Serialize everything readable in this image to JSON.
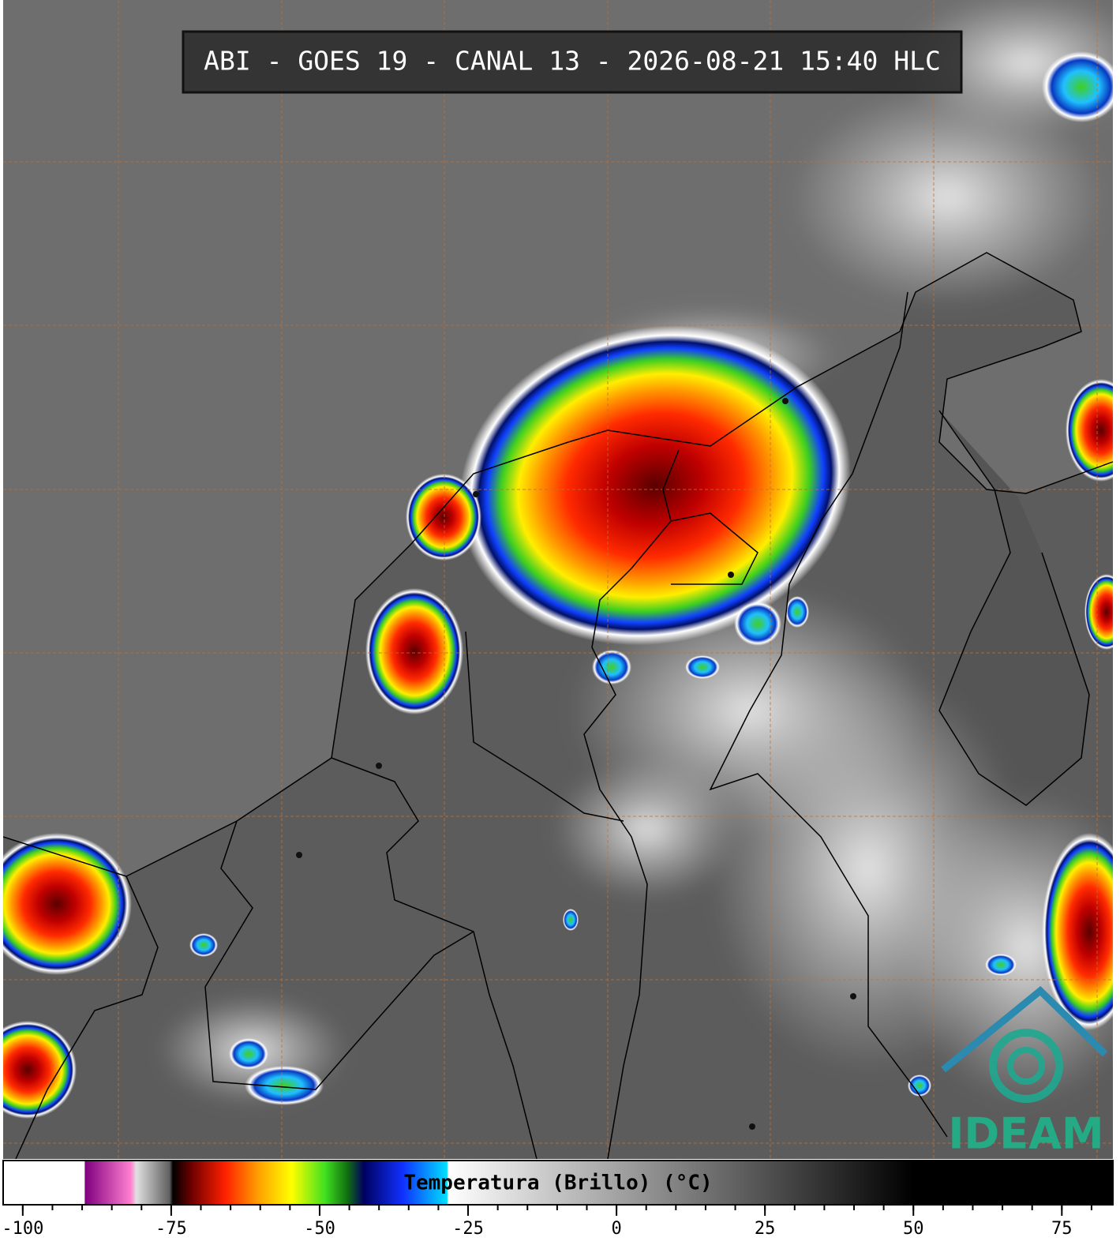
{
  "header": {
    "title": "ABI - GOES 19 - CANAL 13 - 2026-08-21 15:40 HLC"
  },
  "colorbar": {
    "label": "Temperatura (Brillo) (°C)",
    "xlim": [
      -103.3,
      83.6
    ],
    "xticks": [
      -100,
      -75,
      -50,
      -25,
      0,
      25,
      50,
      75
    ],
    "minor_xticks": [
      -100,
      -95,
      -90,
      -85,
      -80,
      -75,
      -70,
      -65,
      -60,
      -55,
      -50,
      -45,
      -40,
      -35,
      -30,
      -25,
      -20,
      -15,
      -10,
      -5,
      0,
      5,
      10,
      15,
      20,
      25,
      30,
      35,
      40,
      45,
      50,
      55,
      60,
      65,
      70,
      75,
      80
    ]
  },
  "logo": {
    "text": "IDEAM"
  }
}
